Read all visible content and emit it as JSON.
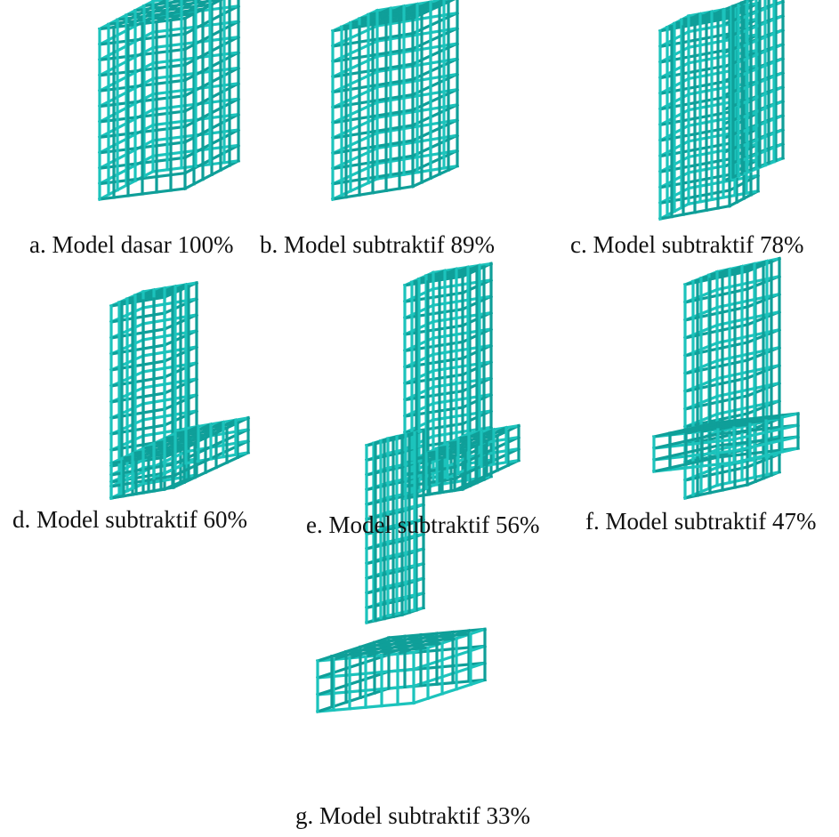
{
  "figure": {
    "colors": {
      "frame": "#1cc3bc",
      "frame_shade": "#0f9f99",
      "background": "#ffffff",
      "text": "#111111"
    },
    "panels": [
      {
        "id": "a",
        "caption": "a. Model dasar 100%"
      },
      {
        "id": "b",
        "caption": "b. Model subtraktif 89%"
      },
      {
        "id": "c",
        "caption": "c. Model subtraktif 78%"
      },
      {
        "id": "d",
        "caption": "d. Model subtraktif 60%"
      },
      {
        "id": "e",
        "caption": "e. Model subtraktif 56%"
      },
      {
        "id": "f",
        "caption": "f. Model subtraktif 47%"
      },
      {
        "id": "g",
        "caption": "g. Model subtraktif 33%"
      }
    ]
  }
}
